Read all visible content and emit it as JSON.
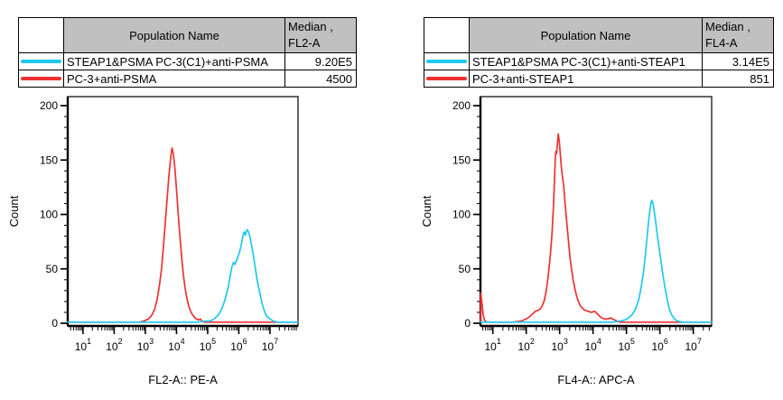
{
  "background_color": "#ffffff",
  "colors": {
    "series_cyan": "#1ec9ee",
    "series_red": "#f03131",
    "table_header_bg": "#c0c0c0",
    "axis_color": "#000000",
    "text_color": "#000000"
  },
  "legend_tables": [
    {
      "population_header": "Population Name",
      "median_header_line1": "Median ,",
      "median_header_line2": "FL2-A",
      "rows": [
        {
          "population": "STEAP1&PSMA PC-3(C1)+anti-PSMA",
          "median": "9.20E5",
          "swatch_color": "#1ec9ee"
        },
        {
          "population": "PC-3+anti-PSMA",
          "median": "4500",
          "swatch_color": "#f03131"
        }
      ]
    },
    {
      "population_header": "Population Name",
      "median_header_line1": "Median ,",
      "median_header_line2": "FL4-A",
      "rows": [
        {
          "population": "STEAP1&PSMA PC-3(C1)+anti-STEAP1",
          "median": "3.14E5",
          "swatch_color": "#1ec9ee"
        },
        {
          "population": "PC-3+anti-STEAP1",
          "median": "851",
          "swatch_color": "#f03131"
        }
      ]
    }
  ],
  "chart_data": [
    {
      "type": "line",
      "subtype": "flow-cytometry-histogram",
      "title": "",
      "xlabel": "FL2-A:: PE-A",
      "ylabel": "Count",
      "x_scale": "log10",
      "xlim_log10": [
        0.51,
        7.9
      ],
      "ylim": [
        0,
        200
      ],
      "yticks": [
        0,
        50,
        100,
        150,
        200
      ],
      "y_minor_step": 10,
      "x_decades": [
        1,
        2,
        3,
        4,
        5,
        6,
        7
      ],
      "grid": false,
      "legend_position": "table-above",
      "series": [
        {
          "name": "PC-3+anti-PSMA",
          "color": "#f03131",
          "median": "4500",
          "points_log10x_count": [
            [
              0.51,
              1
            ],
            [
              1.2,
              1
            ],
            [
              2.0,
              1
            ],
            [
              2.6,
              1
            ],
            [
              2.8,
              1
            ],
            [
              2.95,
              2
            ],
            [
              3.1,
              4
            ],
            [
              3.2,
              7
            ],
            [
              3.3,
              13
            ],
            [
              3.38,
              22
            ],
            [
              3.45,
              34
            ],
            [
              3.52,
              50
            ],
            [
              3.58,
              70
            ],
            [
              3.64,
              92
            ],
            [
              3.7,
              115
            ],
            [
              3.75,
              133
            ],
            [
              3.8,
              148
            ],
            [
              3.83,
              156
            ],
            [
              3.86,
              161
            ],
            [
              3.9,
              155
            ],
            [
              3.94,
              145
            ],
            [
              3.99,
              127
            ],
            [
              4.04,
              107
            ],
            [
              4.09,
              87
            ],
            [
              4.14,
              69
            ],
            [
              4.19,
              53
            ],
            [
              4.24,
              40
            ],
            [
              4.29,
              30
            ],
            [
              4.34,
              22
            ],
            [
              4.39,
              16
            ],
            [
              4.44,
              12
            ],
            [
              4.49,
              9
            ],
            [
              4.54,
              7
            ],
            [
              4.59,
              5
            ],
            [
              4.64,
              4
            ],
            [
              4.7,
              3
            ],
            [
              4.76,
              4
            ],
            [
              4.82,
              2
            ],
            [
              4.9,
              1
            ],
            [
              5.5,
              1
            ],
            [
              6.5,
              1
            ],
            [
              7.9,
              1
            ]
          ]
        },
        {
          "name": "STEAP1&PSMA PC-3(C1)+anti-PSMA",
          "color": "#1ec9ee",
          "median": "9.20E5",
          "points_log10x_count": [
            [
              0.51,
              1
            ],
            [
              1.5,
              1
            ],
            [
              3.0,
              1
            ],
            [
              4.3,
              1
            ],
            [
              4.7,
              1
            ],
            [
              4.9,
              2
            ],
            [
              5.05,
              2
            ],
            [
              5.15,
              3
            ],
            [
              5.25,
              5
            ],
            [
              5.35,
              8
            ],
            [
              5.45,
              13
            ],
            [
              5.55,
              21
            ],
            [
              5.65,
              32
            ],
            [
              5.72,
              43
            ],
            [
              5.78,
              52
            ],
            [
              5.83,
              56
            ],
            [
              5.87,
              54
            ],
            [
              5.92,
              57
            ],
            [
              5.97,
              61
            ],
            [
              6.02,
              65
            ],
            [
              6.07,
              71
            ],
            [
              6.11,
              77
            ],
            [
              6.15,
              82
            ],
            [
              6.18,
              84
            ],
            [
              6.21,
              81
            ],
            [
              6.25,
              85
            ],
            [
              6.28,
              86
            ],
            [
              6.32,
              83
            ],
            [
              6.36,
              79
            ],
            [
              6.4,
              73
            ],
            [
              6.45,
              65
            ],
            [
              6.5,
              56
            ],
            [
              6.55,
              47
            ],
            [
              6.6,
              38
            ],
            [
              6.65,
              31
            ],
            [
              6.7,
              24
            ],
            [
              6.75,
              18
            ],
            [
              6.8,
              13
            ],
            [
              6.85,
              9
            ],
            [
              6.91,
              6
            ],
            [
              7.0,
              4
            ],
            [
              7.1,
              2
            ],
            [
              7.25,
              1
            ],
            [
              7.9,
              1
            ]
          ]
        }
      ]
    },
    {
      "type": "line",
      "subtype": "flow-cytometry-histogram",
      "title": "",
      "xlabel": "FL4-A:: APC-A",
      "ylabel": "Count",
      "x_scale": "log10",
      "xlim_log10": [
        0.63,
        7.55
      ],
      "ylim": [
        0,
        200
      ],
      "yticks": [
        0,
        50,
        100,
        150,
        200
      ],
      "y_minor_step": 10,
      "x_decades": [
        1,
        2,
        3,
        4,
        5,
        6,
        7
      ],
      "grid": false,
      "legend_position": "table-above",
      "series": [
        {
          "name": "PC-3+anti-STEAP1",
          "color": "#f03131",
          "median": "851",
          "points_log10x_count": [
            [
              0.63,
              1
            ],
            [
              0.635,
              28
            ],
            [
              0.67,
              20
            ],
            [
              0.71,
              8
            ],
            [
              0.75,
              3
            ],
            [
              0.8,
              1
            ],
            [
              1.3,
              1
            ],
            [
              1.6,
              1
            ],
            [
              1.85,
              2
            ],
            [
              2.0,
              4
            ],
            [
              2.1,
              6
            ],
            [
              2.2,
              9
            ],
            [
              2.28,
              11
            ],
            [
              2.36,
              12
            ],
            [
              2.42,
              13
            ],
            [
              2.48,
              16
            ],
            [
              2.54,
              21
            ],
            [
              2.6,
              30
            ],
            [
              2.66,
              44
            ],
            [
              2.72,
              62
            ],
            [
              2.77,
              82
            ],
            [
              2.82,
              110
            ],
            [
              2.85,
              135
            ],
            [
              2.87,
              152
            ],
            [
              2.89,
              158
            ],
            [
              2.91,
              156
            ],
            [
              2.93,
              164
            ],
            [
              2.96,
              174
            ],
            [
              2.99,
              167
            ],
            [
              3.02,
              156
            ],
            [
              3.05,
              144
            ],
            [
              3.08,
              136
            ],
            [
              3.12,
              127
            ],
            [
              3.16,
              111
            ],
            [
              3.21,
              94
            ],
            [
              3.26,
              77
            ],
            [
              3.31,
              61
            ],
            [
              3.36,
              49
            ],
            [
              3.41,
              39
            ],
            [
              3.46,
              31
            ],
            [
              3.51,
              25
            ],
            [
              3.56,
              20
            ],
            [
              3.62,
              16
            ],
            [
              3.68,
              14
            ],
            [
              3.75,
              12
            ],
            [
              3.85,
              11
            ],
            [
              3.95,
              10
            ],
            [
              4.05,
              11
            ],
            [
              4.15,
              8
            ],
            [
              4.25,
              5
            ],
            [
              4.35,
              4
            ],
            [
              4.45,
              4
            ],
            [
              4.52,
              5
            ],
            [
              4.58,
              4
            ],
            [
              4.65,
              3
            ],
            [
              4.72,
              2
            ],
            [
              4.8,
              1
            ],
            [
              5.3,
              1
            ],
            [
              6.3,
              1
            ],
            [
              7.55,
              1
            ]
          ]
        },
        {
          "name": "STEAP1&PSMA PC-3(C1)+anti-STEAP1",
          "color": "#1ec9ee",
          "median": "3.14E5",
          "points_log10x_count": [
            [
              0.63,
              1
            ],
            [
              1.5,
              1
            ],
            [
              3.0,
              1
            ],
            [
              4.3,
              1
            ],
            [
              4.6,
              1
            ],
            [
              4.8,
              2
            ],
            [
              4.95,
              3
            ],
            [
              5.07,
              5
            ],
            [
              5.17,
              8
            ],
            [
              5.27,
              13
            ],
            [
              5.37,
              22
            ],
            [
              5.45,
              35
            ],
            [
              5.51,
              47
            ],
            [
              5.56,
              61
            ],
            [
              5.61,
              77
            ],
            [
              5.66,
              93
            ],
            [
              5.7,
              104
            ],
            [
              5.73,
              110
            ],
            [
              5.76,
              113
            ],
            [
              5.8,
              109
            ],
            [
              5.84,
              101
            ],
            [
              5.88,
              92
            ],
            [
              5.92,
              82
            ],
            [
              5.97,
              71
            ],
            [
              6.02,
              60
            ],
            [
              6.07,
              49
            ],
            [
              6.12,
              39
            ],
            [
              6.17,
              30
            ],
            [
              6.22,
              22
            ],
            [
              6.27,
              15
            ],
            [
              6.32,
              10
            ],
            [
              6.37,
              7
            ],
            [
              6.42,
              5
            ],
            [
              6.47,
              3
            ],
            [
              6.55,
              2
            ],
            [
              6.65,
              1
            ],
            [
              7.55,
              1
            ]
          ]
        }
      ]
    }
  ]
}
